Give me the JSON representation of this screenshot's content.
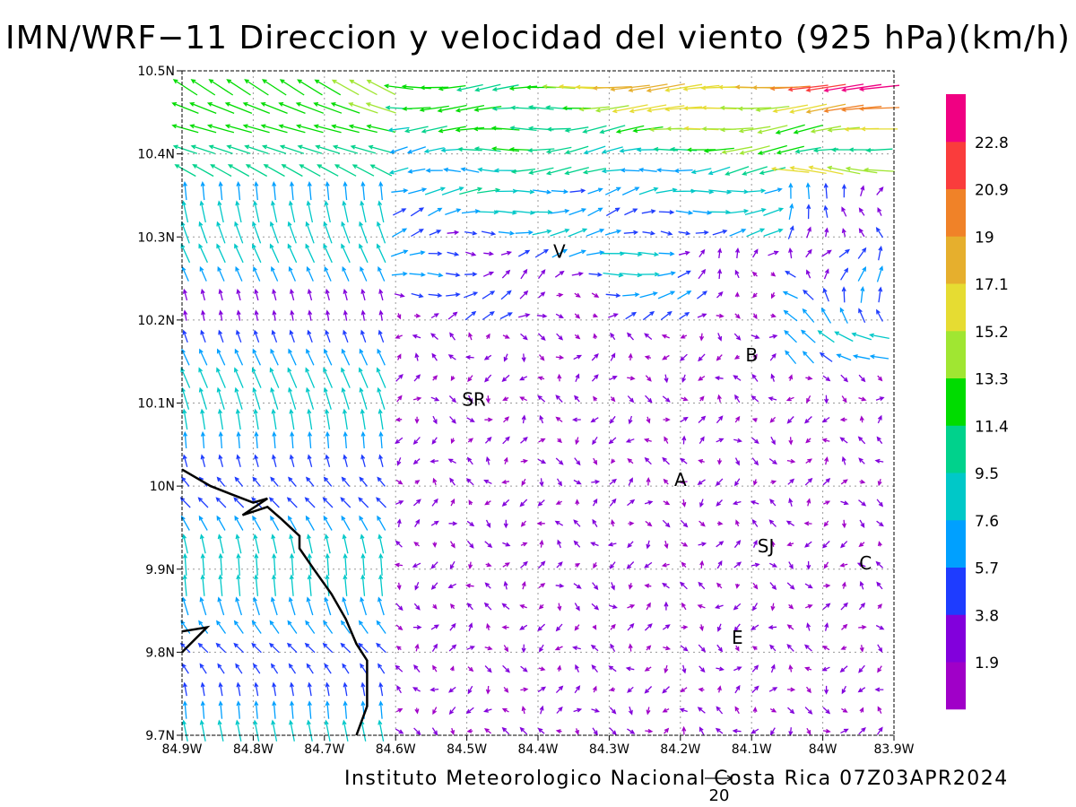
{
  "title": "IMN/WRF−11 Direccion y velocidad del viento (925 hPa)(km/h)",
  "footer": "Instituto Meteorologico Nacional Costa Rica 07Z03APR2024",
  "map": {
    "lon_range": [
      -84.9,
      -83.9
    ],
    "lat_range": [
      9.7,
      10.5
    ],
    "x_ticks": [
      {
        "value": -84.9,
        "label": "84.9W"
      },
      {
        "value": -84.8,
        "label": "84.8W"
      },
      {
        "value": -84.7,
        "label": "84.7W"
      },
      {
        "value": -84.6,
        "label": "84.6W"
      },
      {
        "value": -84.5,
        "label": "84.5W"
      },
      {
        "value": -84.4,
        "label": "84.4W"
      },
      {
        "value": -84.3,
        "label": "84.3W"
      },
      {
        "value": -84.2,
        "label": "84.2W"
      },
      {
        "value": -84.1,
        "label": "84.1W"
      },
      {
        "value": -84.0,
        "label": "84W"
      },
      {
        "value": -83.9,
        "label": "83.9W"
      }
    ],
    "y_ticks": [
      {
        "value": 9.7,
        "label": "9.7N"
      },
      {
        "value": 9.8,
        "label": "9.8N"
      },
      {
        "value": 9.9,
        "label": "9.9N"
      },
      {
        "value": 10.0,
        "label": "10N"
      },
      {
        "value": 10.1,
        "label": "10.1N"
      },
      {
        "value": 10.2,
        "label": "10.2N"
      },
      {
        "value": 10.3,
        "label": "10.3N"
      },
      {
        "value": 10.4,
        "label": "10.4N"
      },
      {
        "value": 10.5,
        "label": "10.5N"
      }
    ],
    "grid": "dotted",
    "places": [
      {
        "label": "V",
        "lon": -84.37,
        "lat": 10.275
      },
      {
        "label": "B",
        "lon": -84.1,
        "lat": 10.15
      },
      {
        "label": "SR",
        "lon": -84.49,
        "lat": 10.097
      },
      {
        "label": "A",
        "lon": -84.2,
        "lat": 10.0
      },
      {
        "label": "SJ",
        "lon": -84.08,
        "lat": 9.92
      },
      {
        "label": "C",
        "lon": -83.94,
        "lat": 9.9
      },
      {
        "label": "E",
        "lon": -84.12,
        "lat": 9.81
      }
    ],
    "coastline": [
      [
        -84.9,
        10.02
      ],
      [
        -84.86,
        10.0
      ],
      [
        -84.83,
        9.99
      ],
      [
        -84.8,
        9.98
      ],
      [
        -84.78,
        9.985
      ],
      [
        -84.815,
        9.965
      ],
      [
        -84.78,
        9.975
      ],
      [
        -84.76,
        9.96
      ],
      [
        -84.735,
        9.94
      ],
      [
        -84.735,
        9.925
      ],
      [
        -84.715,
        9.9
      ],
      [
        -84.69,
        9.87
      ],
      [
        -84.67,
        9.84
      ],
      [
        -84.655,
        9.81
      ],
      [
        -84.64,
        9.79
      ],
      [
        -84.64,
        9.735
      ],
      [
        -84.655,
        9.7
      ]
    ],
    "coastline_2": [
      [
        -84.9,
        9.825
      ],
      [
        -84.865,
        9.83
      ],
      [
        -84.9,
        9.8
      ]
    ]
  },
  "legend": {
    "colors": [
      "#a000c8",
      "#8200dc",
      "#1e3cff",
      "#00a0ff",
      "#00c8c8",
      "#00d28c",
      "#00dc00",
      "#a0e632",
      "#e6dc32",
      "#e6af2d",
      "#f08228",
      "#fa3c3c",
      "#f00082"
    ],
    "labels": [
      "1.9",
      "3.8",
      "5.7",
      "7.6",
      "9.5",
      "11.4",
      "13.3",
      "15.2",
      "17.1",
      "19",
      "20.9",
      "22.8"
    ]
  },
  "reference_vector": {
    "label": "20",
    "value": 20
  }
}
